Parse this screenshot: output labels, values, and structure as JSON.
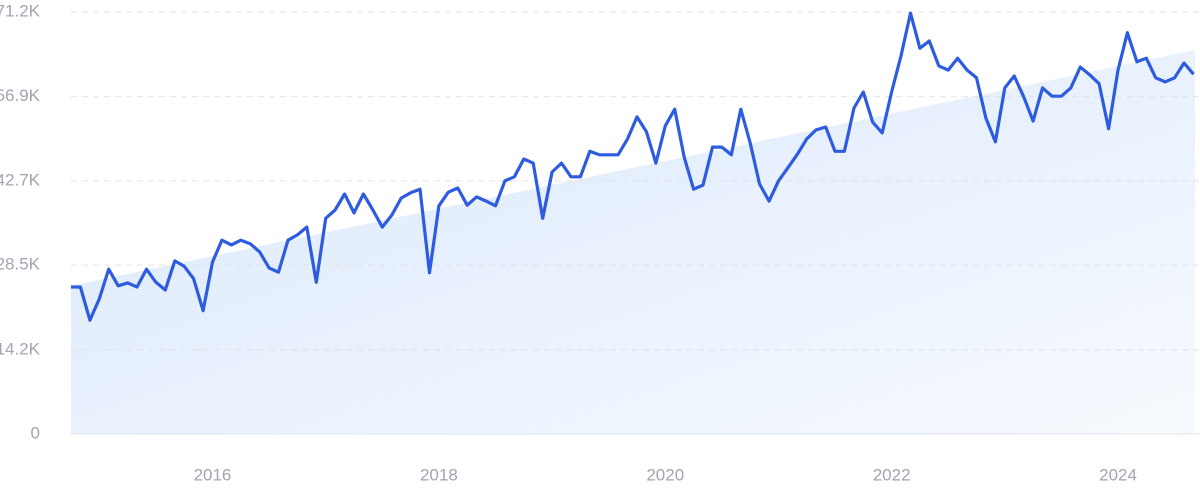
{
  "chart_data": {
    "type": "line",
    "x": [
      2014.75,
      2014.833,
      2014.917,
      2015,
      2015.083,
      2015.167,
      2015.25,
      2015.333,
      2015.417,
      2015.5,
      2015.583,
      2015.667,
      2015.75,
      2015.833,
      2015.917,
      2016,
      2016.083,
      2016.167,
      2016.25,
      2016.333,
      2016.417,
      2016.5,
      2016.583,
      2016.667,
      2016.75,
      2016.833,
      2016.917,
      2017,
      2017.083,
      2017.167,
      2017.25,
      2017.333,
      2017.417,
      2017.5,
      2017.583,
      2017.667,
      2017.75,
      2017.833,
      2017.917,
      2018,
      2018.083,
      2018.167,
      2018.25,
      2018.333,
      2018.417,
      2018.5,
      2018.583,
      2018.667,
      2018.75,
      2018.833,
      2018.917,
      2019,
      2019.083,
      2019.167,
      2019.25,
      2019.333,
      2019.417,
      2019.5,
      2019.583,
      2019.667,
      2019.75,
      2019.833,
      2019.917,
      2020,
      2020.083,
      2020.167,
      2020.25,
      2020.333,
      2020.417,
      2020.5,
      2020.583,
      2020.667,
      2020.75,
      2020.833,
      2020.917,
      2021,
      2021.083,
      2021.167,
      2021.25,
      2021.333,
      2021.417,
      2021.5,
      2021.583,
      2021.667,
      2021.75,
      2021.833,
      2021.917,
      2022,
      2022.083,
      2022.167,
      2022.25,
      2022.333,
      2022.417,
      2022.5,
      2022.583,
      2022.667,
      2022.75,
      2022.833,
      2022.917,
      2023,
      2023.083,
      2023.167,
      2023.25,
      2023.333,
      2023.417,
      2023.5,
      2023.583,
      2023.667,
      2023.75,
      2023.833,
      2023.917,
      2024,
      2024.083,
      2024.167,
      2024.25,
      2024.333,
      2024.417,
      2024.5,
      2024.583,
      2024.667
    ],
    "values": [
      24800,
      24800,
      19200,
      22800,
      27800,
      25000,
      25500,
      24800,
      27800,
      25600,
      24300,
      29200,
      28300,
      26200,
      20800,
      29000,
      32700,
      31900,
      32700,
      32100,
      30700,
      28000,
      27300,
      32700,
      33600,
      34900,
      25600,
      36400,
      37800,
      40500,
      37300,
      40500,
      37800,
      34900,
      36900,
      39800,
      40700,
      41300,
      27200,
      38500,
      40800,
      41500,
      38600,
      40000,
      39300,
      38500,
      42700,
      43400,
      46400,
      45700,
      36400,
      44200,
      45700,
      43400,
      43400,
      47700,
      47100,
      47100,
      47100,
      49800,
      53500,
      51000,
      45700,
      52000,
      54800,
      46700,
      41300,
      42000,
      48400,
      48400,
      47100,
      54800,
      49100,
      42200,
      39300,
      42700,
      44900,
      47200,
      49800,
      51300,
      51800,
      47700,
      47700,
      55000,
      57700,
      52600,
      50800,
      57700,
      63800,
      71000,
      65100,
      66300,
      62100,
      61400,
      63400,
      61400,
      60100,
      53300,
      49300,
      58400,
      60400,
      56900,
      52800,
      58400,
      57000,
      57000,
      58400,
      61900,
      60600,
      59100,
      51500,
      61400,
      67700,
      62800,
      63400,
      60100,
      59400,
      60100,
      62600,
      60700
    ],
    "trend": [
      25000,
      64800
    ],
    "color": "#2e5ce0",
    "trend_color": "#d6e6fa",
    "xlim": [
      2014.75,
      2024.68
    ],
    "xticks": [
      2016,
      2018,
      2020,
      2022,
      2024
    ],
    "ylim": [
      0,
      71200
    ],
    "yticks": [
      0,
      {
        "value": 14200,
        "label": "14.2K"
      },
      {
        "value": 28500,
        "label": "28.5K"
      },
      {
        "value": 42700,
        "label": "42.7K"
      },
      {
        "value": 56900,
        "label": "56.9K"
      },
      {
        "value": 71200,
        "label": "71.2K"
      }
    ],
    "grid": true
  }
}
